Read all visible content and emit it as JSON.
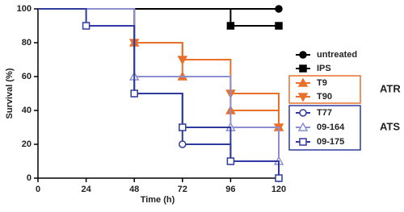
{
  "chart_data": {
    "type": "survival",
    "xlabel": "Time (h)",
    "ylabel": "Survival (%)",
    "x": [
      0,
      24,
      48,
      72,
      96,
      120
    ],
    "xlim": [
      0,
      120
    ],
    "xticks": [
      0,
      24,
      48,
      72,
      96,
      120
    ],
    "ylim": [
      0,
      100
    ],
    "yticks": [
      0,
      20,
      40,
      60,
      80,
      100
    ],
    "series": [
      {
        "name": "untreated",
        "color": "#000000",
        "marker": "circle",
        "filled": true,
        "values": [
          100,
          100,
          100,
          100,
          100,
          100
        ]
      },
      {
        "name": "IPS",
        "color": "#000000",
        "marker": "square",
        "filled": true,
        "values": [
          100,
          100,
          100,
          100,
          90,
          90
        ]
      },
      {
        "name": "T9",
        "color": "#e8702a",
        "marker": "triangle-up",
        "filled": true,
        "values": [
          100,
          100,
          80,
          60,
          40,
          30
        ]
      },
      {
        "name": "T90",
        "color": "#e8702a",
        "marker": "triangle-down",
        "filled": true,
        "values": [
          100,
          100,
          80,
          70,
          50,
          30
        ]
      },
      {
        "name": "T77",
        "color": "#2e3a9e",
        "marker": "circle",
        "filled": false,
        "values": [
          100,
          100,
          50,
          20,
          10,
          0
        ]
      },
      {
        "name": "09-164",
        "color": "#8c8fd0",
        "marker": "triangle-up",
        "filled": false,
        "values": [
          100,
          100,
          60,
          60,
          30,
          10
        ]
      },
      {
        "name": "09-175",
        "color": "#2e3a9e",
        "marker": "square",
        "filled": false,
        "values": [
          100,
          90,
          50,
          30,
          10,
          0
        ]
      }
    ],
    "groups": [
      {
        "label": "ATR",
        "color": "#e8702a",
        "series": [
          2,
          3
        ]
      },
      {
        "label": "ATS",
        "color": "#2e3a9e",
        "series": [
          4,
          5,
          6
        ]
      }
    ]
  }
}
